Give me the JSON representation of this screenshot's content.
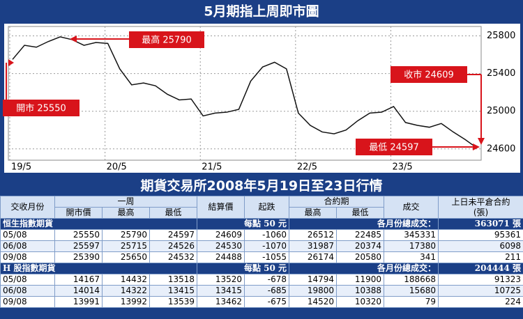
{
  "chart_data": {
    "type": "line",
    "title": "5月期指上周即市圖",
    "categories": [
      "19/5",
      null,
      null,
      null,
      null,
      null,
      null,
      null,
      "20/5",
      null,
      null,
      null,
      null,
      null,
      null,
      null,
      "21/5",
      null,
      null,
      null,
      null,
      null,
      null,
      null,
      "22/5",
      null,
      null,
      null,
      null,
      null,
      null,
      null,
      "23/5",
      null,
      null,
      null,
      null,
      null,
      null,
      null
    ],
    "values": [
      25550,
      25700,
      25680,
      25740,
      25790,
      25760,
      25700,
      25730,
      25720,
      25450,
      25280,
      25300,
      25270,
      25180,
      25120,
      25130,
      24950,
      24980,
      24990,
      25020,
      25320,
      25470,
      25520,
      25450,
      24980,
      24850,
      24780,
      24760,
      24800,
      24900,
      24980,
      24990,
      25050,
      24880,
      24850,
      24830,
      24870,
      24780,
      24700,
      24609
    ],
    "color": "#111111",
    "ylim": [
      24480,
      25900
    ],
    "yticks": [
      24600,
      25000,
      25400,
      25800
    ],
    "grid": true,
    "annotations": [
      "最高 25790",
      "開市 25550",
      "收市 24609",
      "最低 24597"
    ]
  },
  "table": {
    "title": "期貨交易所2008年5月19日至23日行情",
    "header": [
      "交收月份",
      "一周",
      "結算價",
      "起跌",
      "合約期",
      "成交",
      "上日未平倉合約",
      "(張)"
    ],
    "subheader": [
      "開市價",
      "最高",
      "最低",
      "最高",
      "最低"
    ],
    "sections": [
      {
        "name": "恒生指數期貨",
        "unit": "每點 50 元",
        "total_label": "各月份總成交：",
        "total": "363071 張",
        "rows": [
          [
            "05/08",
            "25550",
            "25790",
            "24597",
            "24609",
            "-1060",
            "26512",
            "22485",
            "345331",
            "95361"
          ],
          [
            "06/08",
            "25597",
            "25715",
            "24526",
            "24530",
            "-1070",
            "31987",
            "20374",
            "17380",
            "6098"
          ],
          [
            "09/08",
            "25390",
            "25650",
            "24532",
            "24488",
            "-1055",
            "26174",
            "20580",
            "341",
            "211"
          ]
        ]
      },
      {
        "name": "H 股指數期貨",
        "unit": "每點 50 元",
        "total_label": "各月份總成交：",
        "total": "204444 張",
        "rows": [
          [
            "05/08",
            "14167",
            "14432",
            "13518",
            "13520",
            "-678",
            "14794",
            "11900",
            "188668",
            "91323"
          ],
          [
            "06/08",
            "14014",
            "14322",
            "13415",
            "13415",
            "-685",
            "19800",
            "10388",
            "15680",
            "10725"
          ],
          [
            "09/08",
            "13991",
            "13992",
            "13539",
            "13462",
            "-675",
            "14520",
            "10320",
            "79",
            "224"
          ]
        ]
      }
    ]
  }
}
